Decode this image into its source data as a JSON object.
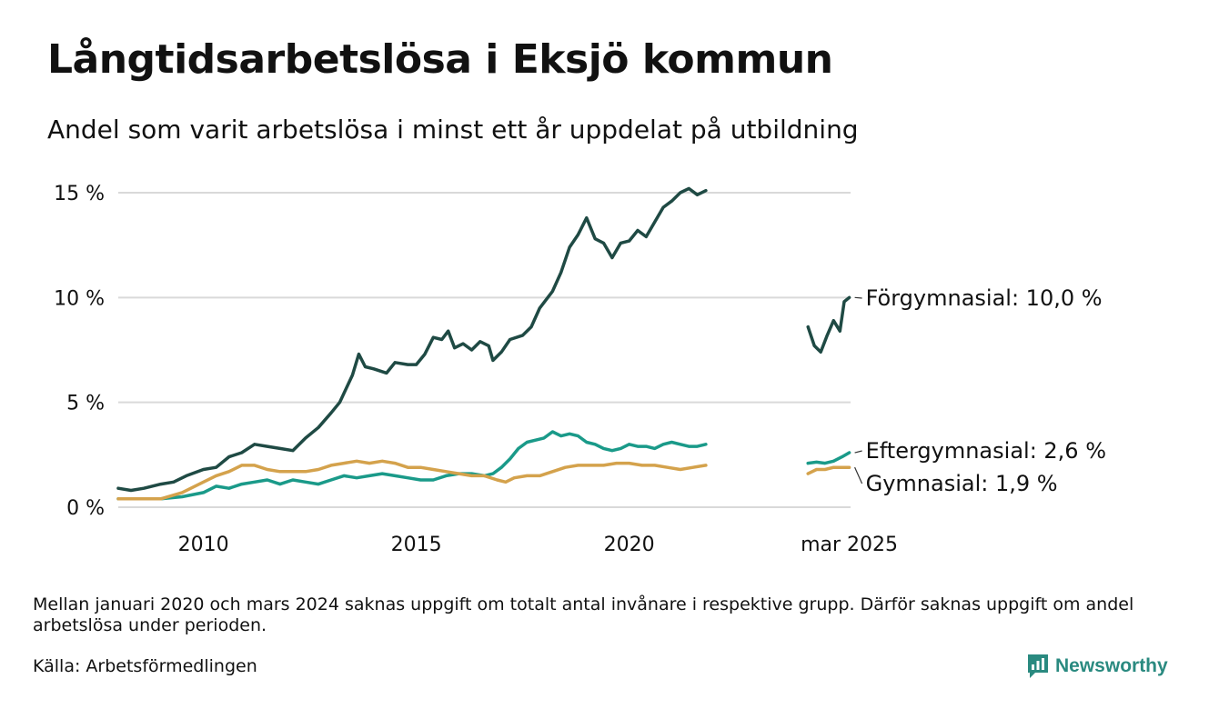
{
  "header": {
    "title": "Långtidsarbetslösa i Eksjö kommun",
    "subtitle": "Andel som varit arbetslösa i minst ett år uppdelat på utbildning"
  },
  "footer": {
    "note": "Mellan januari 2020 och mars 2024 saknas uppgift om totalt antal invånare i respektive grupp. Därför saknas uppgift om andel arbetslösa under perioden.",
    "source": "Källa: Arbetsförmedlingen",
    "brand": "Newsworthy",
    "brand_icon": "newsworthy-logo-icon",
    "brand_color": "#2a8a80"
  },
  "chart_data": {
    "type": "line",
    "xlim": [
      2008.0,
      2025.2
    ],
    "ylim": [
      0,
      15
    ],
    "y_ticks": [
      {
        "value": 0,
        "label": "0 %"
      },
      {
        "value": 5,
        "label": "5 %"
      },
      {
        "value": 10,
        "label": "10 %"
      },
      {
        "value": 15,
        "label": "15 %"
      }
    ],
    "x_ticks": [
      {
        "value": 2010,
        "label": "2010"
      },
      {
        "value": 2015,
        "label": "2015"
      },
      {
        "value": 2020,
        "label": "2020"
      },
      {
        "value": 2025.17,
        "label": "mar 2025"
      }
    ],
    "grid": true,
    "legend": "direct labels at line ends",
    "series": [
      {
        "name": "Förgymnasial",
        "end_label": "Förgymnasial: 10,0 %",
        "color": "#1f4a44",
        "segments": [
          [
            [
              2008.0,
              0.9
            ],
            [
              2008.3,
              0.8
            ],
            [
              2008.6,
              0.9
            ],
            [
              2009.0,
              1.1
            ],
            [
              2009.3,
              1.2
            ],
            [
              2009.6,
              1.5
            ],
            [
              2010.0,
              1.8
            ],
            [
              2010.3,
              1.9
            ],
            [
              2010.6,
              2.4
            ],
            [
              2010.9,
              2.6
            ],
            [
              2011.2,
              3.0
            ],
            [
              2011.5,
              2.9
            ],
            [
              2011.8,
              2.8
            ],
            [
              2012.1,
              2.7
            ],
            [
              2012.4,
              3.3
            ],
            [
              2012.7,
              3.8
            ],
            [
              2013.0,
              4.5
            ],
            [
              2013.2,
              5.0
            ],
            [
              2013.5,
              6.3
            ],
            [
              2013.65,
              7.3
            ],
            [
              2013.8,
              6.7
            ],
            [
              2014.0,
              6.6
            ],
            [
              2014.3,
              6.4
            ],
            [
              2014.5,
              6.9
            ],
            [
              2014.8,
              6.8
            ],
            [
              2015.0,
              6.8
            ],
            [
              2015.2,
              7.3
            ],
            [
              2015.4,
              8.1
            ],
            [
              2015.6,
              8.0
            ],
            [
              2015.75,
              8.4
            ],
            [
              2015.9,
              7.6
            ],
            [
              2016.1,
              7.8
            ],
            [
              2016.3,
              7.5
            ],
            [
              2016.5,
              7.9
            ],
            [
              2016.7,
              7.7
            ],
            [
              2016.8,
              7.0
            ],
            [
              2017.0,
              7.4
            ],
            [
              2017.2,
              8.0
            ],
            [
              2017.5,
              8.2
            ],
            [
              2017.7,
              8.6
            ],
            [
              2017.9,
              9.5
            ],
            [
              2018.2,
              10.3
            ],
            [
              2018.4,
              11.2
            ],
            [
              2018.6,
              12.4
            ],
            [
              2018.8,
              13.0
            ],
            [
              2019.0,
              13.8
            ],
            [
              2019.2,
              12.8
            ],
            [
              2019.4,
              12.6
            ],
            [
              2019.6,
              11.9
            ],
            [
              2019.8,
              12.6
            ],
            [
              2020.0,
              12.7
            ],
            [
              2020.2,
              13.2
            ],
            [
              2020.4,
              12.9
            ],
            [
              2020.6,
              13.6
            ],
            [
              2020.8,
              14.3
            ],
            [
              2021.0,
              14.6
            ],
            [
              2021.2,
              15.0
            ],
            [
              2021.4,
              15.2
            ],
            [
              2021.6,
              14.9
            ],
            [
              2021.8,
              15.1
            ]
          ],
          [
            [
              2024.2,
              8.6
            ],
            [
              2024.35,
              7.7
            ],
            [
              2024.5,
              7.4
            ],
            [
              2024.65,
              8.2
            ],
            [
              2024.8,
              8.9
            ],
            [
              2024.95,
              8.4
            ],
            [
              2025.05,
              9.8
            ],
            [
              2025.17,
              10.0
            ]
          ]
        ]
      },
      {
        "name": "Eftergymnasial",
        "end_label": "Eftergymnasial:  2,6 %",
        "color": "#1a9a89",
        "segments": [
          [
            [
              2008.0,
              0.4
            ],
            [
              2008.5,
              0.4
            ],
            [
              2009.0,
              0.4
            ],
            [
              2009.5,
              0.5
            ],
            [
              2010.0,
              0.7
            ],
            [
              2010.3,
              1.0
            ],
            [
              2010.6,
              0.9
            ],
            [
              2010.9,
              1.1
            ],
            [
              2011.2,
              1.2
            ],
            [
              2011.5,
              1.3
            ],
            [
              2011.8,
              1.1
            ],
            [
              2012.1,
              1.3
            ],
            [
              2012.4,
              1.2
            ],
            [
              2012.7,
              1.1
            ],
            [
              2013.0,
              1.3
            ],
            [
              2013.3,
              1.5
            ],
            [
              2013.6,
              1.4
            ],
            [
              2013.9,
              1.5
            ],
            [
              2014.2,
              1.6
            ],
            [
              2014.5,
              1.5
            ],
            [
              2014.8,
              1.4
            ],
            [
              2015.1,
              1.3
            ],
            [
              2015.4,
              1.3
            ],
            [
              2015.7,
              1.5
            ],
            [
              2016.0,
              1.6
            ],
            [
              2016.3,
              1.6
            ],
            [
              2016.6,
              1.5
            ],
            [
              2016.8,
              1.6
            ],
            [
              2017.0,
              1.9
            ],
            [
              2017.2,
              2.3
            ],
            [
              2017.4,
              2.8
            ],
            [
              2017.6,
              3.1
            ],
            [
              2017.8,
              3.2
            ],
            [
              2018.0,
              3.3
            ],
            [
              2018.2,
              3.6
            ],
            [
              2018.4,
              3.4
            ],
            [
              2018.6,
              3.5
            ],
            [
              2018.8,
              3.4
            ],
            [
              2019.0,
              3.1
            ],
            [
              2019.2,
              3.0
            ],
            [
              2019.4,
              2.8
            ],
            [
              2019.6,
              2.7
            ],
            [
              2019.8,
              2.8
            ],
            [
              2020.0,
              3.0
            ],
            [
              2020.2,
              2.9
            ],
            [
              2020.4,
              2.9
            ],
            [
              2020.6,
              2.8
            ],
            [
              2020.8,
              3.0
            ],
            [
              2021.0,
              3.1
            ],
            [
              2021.2,
              3.0
            ],
            [
              2021.4,
              2.9
            ],
            [
              2021.6,
              2.9
            ],
            [
              2021.8,
              3.0
            ]
          ],
          [
            [
              2024.2,
              2.1
            ],
            [
              2024.4,
              2.15
            ],
            [
              2024.6,
              2.1
            ],
            [
              2024.8,
              2.2
            ],
            [
              2025.0,
              2.4
            ],
            [
              2025.17,
              2.6
            ]
          ]
        ]
      },
      {
        "name": "Gymnasial",
        "end_label": "Gymnasial:  1,9 %",
        "color": "#d4a24c",
        "segments": [
          [
            [
              2008.0,
              0.4
            ],
            [
              2008.5,
              0.4
            ],
            [
              2009.0,
              0.4
            ],
            [
              2009.5,
              0.7
            ],
            [
              2010.0,
              1.2
            ],
            [
              2010.3,
              1.5
            ],
            [
              2010.6,
              1.7
            ],
            [
              2010.9,
              2.0
            ],
            [
              2011.2,
              2.0
            ],
            [
              2011.5,
              1.8
            ],
            [
              2011.8,
              1.7
            ],
            [
              2012.1,
              1.7
            ],
            [
              2012.4,
              1.7
            ],
            [
              2012.7,
              1.8
            ],
            [
              2013.0,
              2.0
            ],
            [
              2013.3,
              2.1
            ],
            [
              2013.6,
              2.2
            ],
            [
              2013.9,
              2.1
            ],
            [
              2014.2,
              2.2
            ],
            [
              2014.5,
              2.1
            ],
            [
              2014.8,
              1.9
            ],
            [
              2015.1,
              1.9
            ],
            [
              2015.4,
              1.8
            ],
            [
              2015.7,
              1.7
            ],
            [
              2016.0,
              1.6
            ],
            [
              2016.3,
              1.5
            ],
            [
              2016.6,
              1.5
            ],
            [
              2016.9,
              1.3
            ],
            [
              2017.1,
              1.2
            ],
            [
              2017.3,
              1.4
            ],
            [
              2017.6,
              1.5
            ],
            [
              2017.9,
              1.5
            ],
            [
              2018.2,
              1.7
            ],
            [
              2018.5,
              1.9
            ],
            [
              2018.8,
              2.0
            ],
            [
              2019.1,
              2.0
            ],
            [
              2019.4,
              2.0
            ],
            [
              2019.7,
              2.1
            ],
            [
              2020.0,
              2.1
            ],
            [
              2020.3,
              2.0
            ],
            [
              2020.6,
              2.0
            ],
            [
              2020.9,
              1.9
            ],
            [
              2021.2,
              1.8
            ],
            [
              2021.5,
              1.9
            ],
            [
              2021.8,
              2.0
            ]
          ],
          [
            [
              2024.2,
              1.6
            ],
            [
              2024.4,
              1.8
            ],
            [
              2024.6,
              1.8
            ],
            [
              2024.8,
              1.9
            ],
            [
              2025.0,
              1.9
            ],
            [
              2025.17,
              1.9
            ]
          ]
        ]
      }
    ]
  }
}
